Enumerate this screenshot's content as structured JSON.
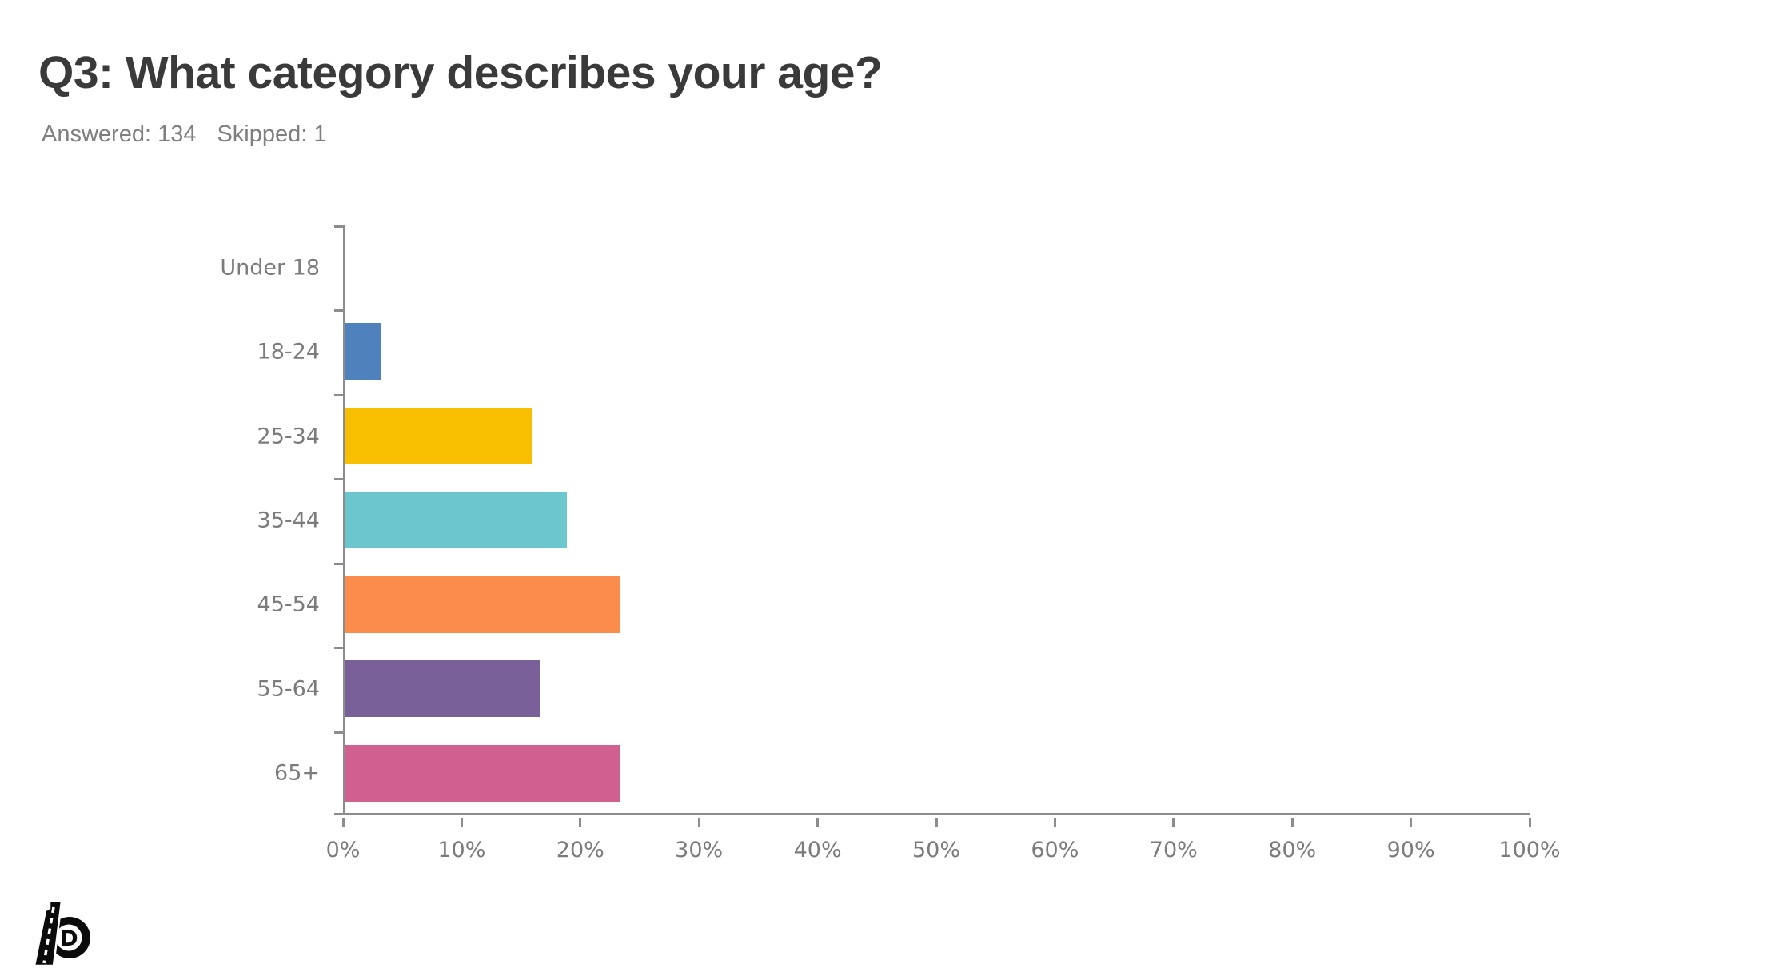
{
  "header": {
    "title": "Q3: What category describes your age?",
    "answered": "Answered: 134",
    "skipped": "Skipped: 1"
  },
  "chart_data": {
    "type": "bar",
    "orientation": "horizontal",
    "title": "Q3: What category describes your age?",
    "categories": [
      "Under 18",
      "18-24",
      "25-34",
      "35-44",
      "45-54",
      "55-64",
      "65+"
    ],
    "values": [
      0,
      2.99,
      15.67,
      18.66,
      23.13,
      16.42,
      23.13
    ],
    "bar_colors": [
      null,
      "#4F81BD",
      "#F8BE00",
      "#6BC6CE",
      "#FB8C4B",
      "#7A6098",
      "#D0608F"
    ],
    "x_axis": {
      "min": 0,
      "max": 100,
      "tick_step": 10,
      "tick_labels": [
        "0%",
        "10%",
        "20%",
        "30%",
        "40%",
        "50%",
        "60%",
        "70%",
        "80%",
        "90%",
        "100%"
      ]
    },
    "grid": false,
    "legend": false,
    "axis_color": "#8C8C8C",
    "label_color": "#7B7B7B"
  },
  "logo": {
    "letter": "D"
  }
}
